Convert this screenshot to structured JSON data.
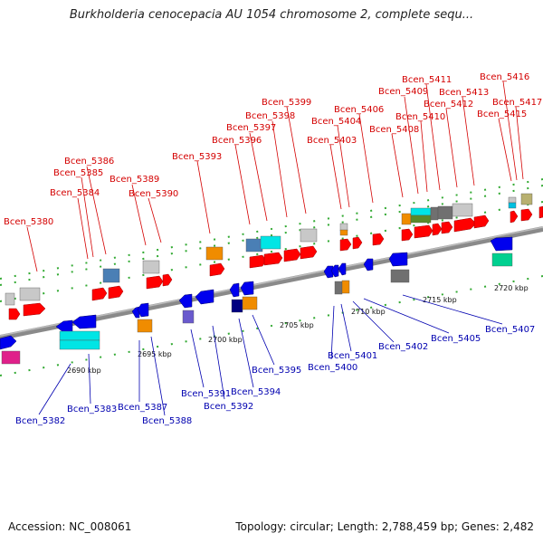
{
  "title": "Burkholderia cenocepacia AU 1054 chromosome 2, complete sequ...",
  "footer": {
    "accession": "Accession: NC_008061",
    "topology": "Topology: circular; Length: 2,788,459 bp; Genes: 2,482"
  },
  "colors": {
    "forward": "#ff0000",
    "reverse": "#0000ee",
    "forward_label": "#d40000",
    "reverse_label": "#0000b0",
    "backbone": "#888888",
    "tick": "#228b22"
  },
  "scale": [
    "2690 kbp",
    "2695 kbp",
    "2700 kbp",
    "2705 kbp",
    "2710 kbp",
    "2715 kbp",
    "2720 kbp"
  ],
  "forward_labels": [
    "Bcen_5380",
    "Bcen_5384",
    "Bcen_5385",
    "Bcen_5386",
    "Bcen_5389",
    "Bcen_5390",
    "Bcen_5393",
    "Bcen_5396",
    "Bcen_5397",
    "Bcen_5398",
    "Bcen_5399",
    "Bcen_5403",
    "Bcen_5404",
    "Bcen_5406",
    "Bcen_5408",
    "Bcen_5409",
    "Bcen_5410",
    "Bcen_5411",
    "Bcen_5412",
    "Bcen_5413",
    "Bcen_5415",
    "Bcen_5416",
    "Bcen_5417"
  ],
  "reverse_labels": [
    "Bcen_5382",
    "Bcen_5383",
    "Bcen_5387",
    "Bcen_5388",
    "Bcen_5391",
    "Bcen_5392",
    "Bcen_5394",
    "Bcen_5395",
    "Bcen_5400",
    "Bcen_5401",
    "Bcen_5402",
    "Bcen_5405",
    "Bcen_5407"
  ]
}
